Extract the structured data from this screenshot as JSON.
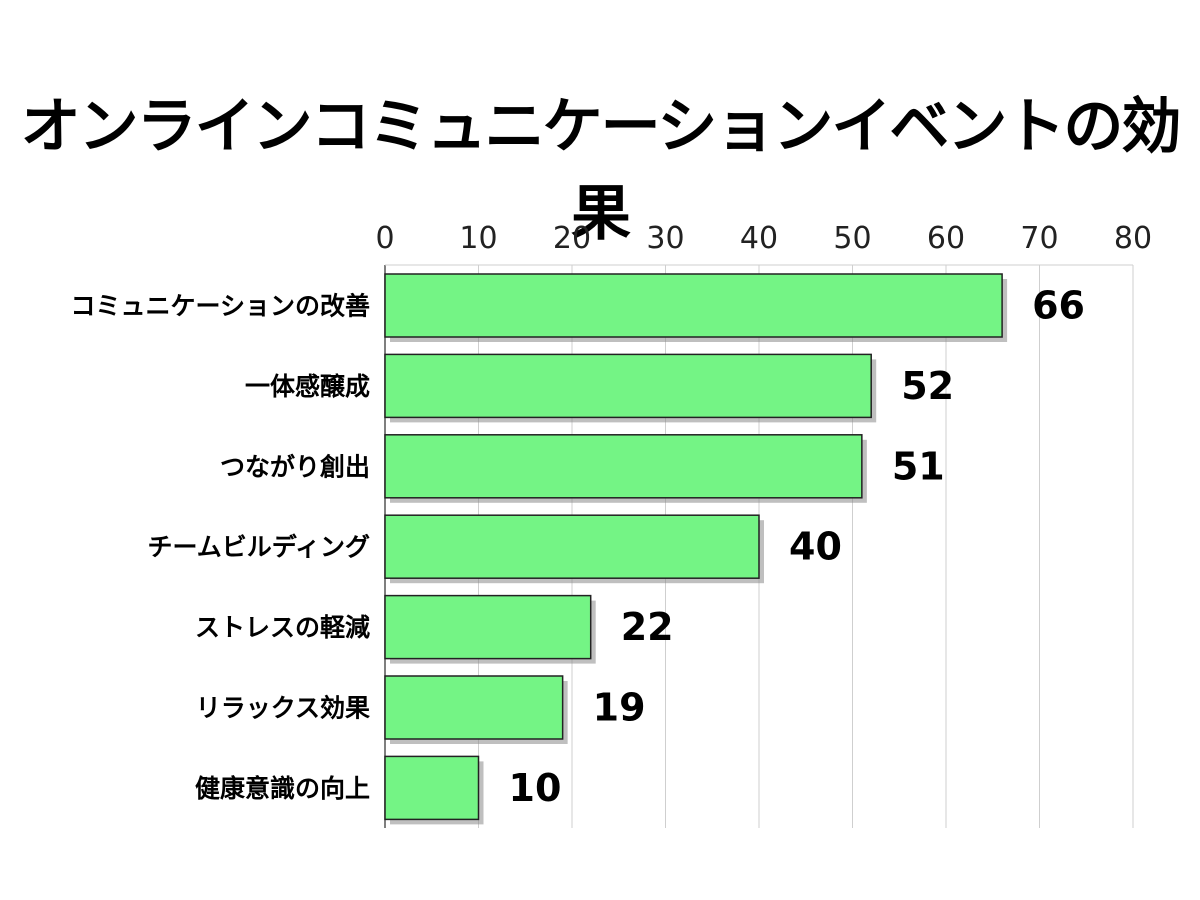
{
  "chart_data": {
    "type": "bar",
    "orientation": "horizontal",
    "title": "オンラインコミュニケーションイベントの効果",
    "categories": [
      "コミュニケーションの改善",
      "一体感醸成",
      "つながり創出",
      "チームビルディング",
      "ストレスの軽減",
      "リラックス効果",
      "健康意識の向上"
    ],
    "values": [
      66,
      52,
      51,
      40,
      22,
      19,
      10
    ],
    "xlim": [
      0,
      80
    ],
    "xticks": [
      0,
      10,
      20,
      30,
      40,
      50,
      60,
      70,
      80
    ],
    "xaxis_position": "top",
    "grid": true,
    "bar_color": "#74f485",
    "bar_border_color": "#222222",
    "shadow_color": "#8a8a8a"
  }
}
